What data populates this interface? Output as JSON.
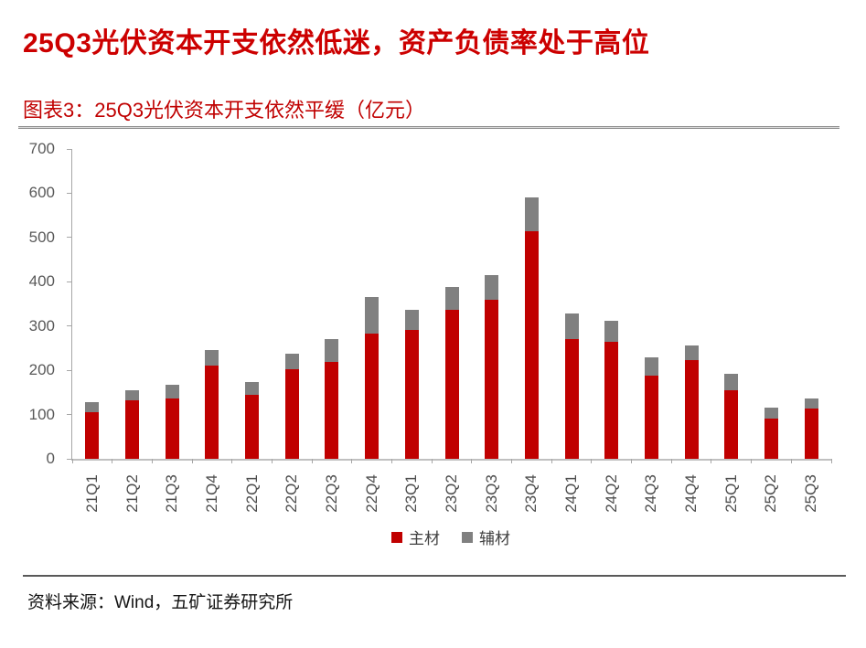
{
  "page": {
    "title": "25Q3光伏资本开支依然低迷，资产负债率处于高位",
    "source": "资料来源：Wind，五矿证券研究所"
  },
  "figure": {
    "caption": "图表3：25Q3光伏资本开支依然平缓（亿元）"
  },
  "colors": {
    "title_red": "#CC0000",
    "caption_red": "#C00000",
    "bar_main": "#C00000",
    "bar_aux": "#808080",
    "axis_line": "#A6A6A6",
    "axis_text": "#595959",
    "legend_text": "#404040",
    "rule_gray": "#8C8C8C",
    "rule_dark": "#595959"
  },
  "chart_data": {
    "type": "bar",
    "stacked": true,
    "title": "图表3：25Q3光伏资本开支依然平缓（亿元）",
    "xlabel": "",
    "ylabel": "",
    "unit": "亿元",
    "ylim": [
      0,
      700
    ],
    "yticks": [
      0,
      100,
      200,
      300,
      400,
      500,
      600,
      700
    ],
    "grid": false,
    "legend_position": "bottom",
    "categories": [
      "21Q1",
      "21Q2",
      "21Q3",
      "21Q4",
      "22Q1",
      "22Q2",
      "22Q3",
      "22Q4",
      "23Q1",
      "23Q2",
      "23Q3",
      "23Q4",
      "24Q1",
      "24Q2",
      "24Q3",
      "24Q4",
      "25Q1",
      "25Q2",
      "25Q3"
    ],
    "series": [
      {
        "name": "主材",
        "color": "#C00000",
        "values": [
          105,
          132,
          137,
          210,
          145,
          203,
          219,
          283,
          291,
          336,
          360,
          515,
          271,
          264,
          188,
          224,
          155,
          90,
          113
        ]
      },
      {
        "name": "辅材",
        "color": "#808080",
        "values": [
          23,
          22,
          30,
          35,
          28,
          34,
          51,
          82,
          46,
          52,
          55,
          75,
          57,
          47,
          42,
          32,
          38,
          26,
          23
        ]
      }
    ],
    "totals": [
      128,
      154,
      167,
      245,
      173,
      237,
      270,
      365,
      337,
      388,
      415,
      590,
      328,
      311,
      230,
      256,
      193,
      116,
      136
    ]
  }
}
